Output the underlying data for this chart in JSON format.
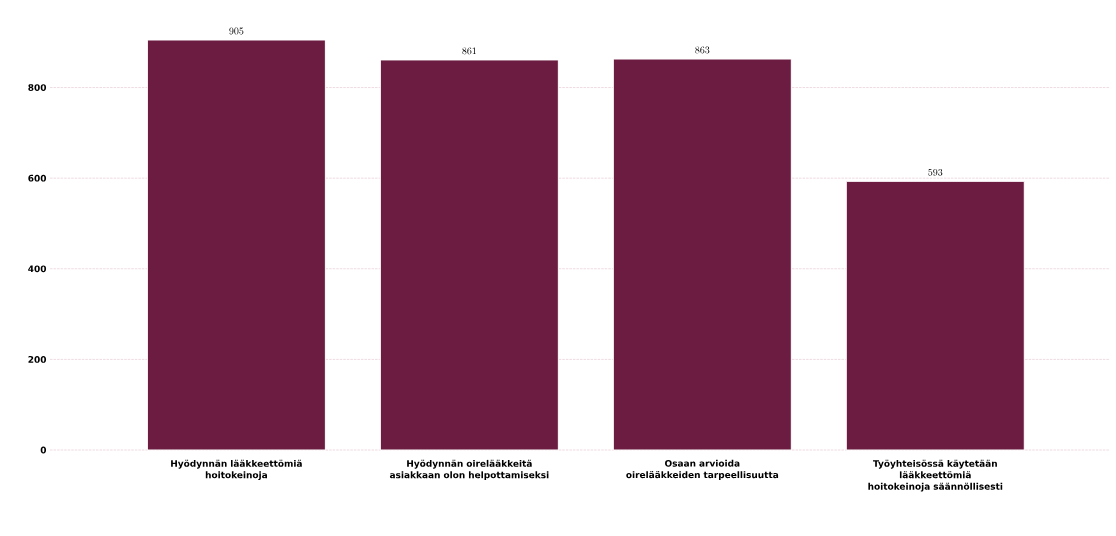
{
  "chart_data": {
    "type": "bar",
    "categories": [
      "Hyödynnän lääkkeettömiä hoitokeinoja",
      "Hyödynnän oirelääkkeitä asiakkaan olon helpottamiseksi",
      "Osaan arvioida oirelääkkeiden tarpeellisuutta",
      "Työyhteisössä käytetään lääkkeettömiä hoitokeinoja säännöllisesti"
    ],
    "values": [
      905,
      861,
      863,
      593
    ],
    "color": "#6b1c40",
    "ylim": [
      0,
      905
    ],
    "yticks": [
      0,
      200,
      400,
      600,
      800
    ],
    "grid": "y",
    "data_labels": true
  }
}
